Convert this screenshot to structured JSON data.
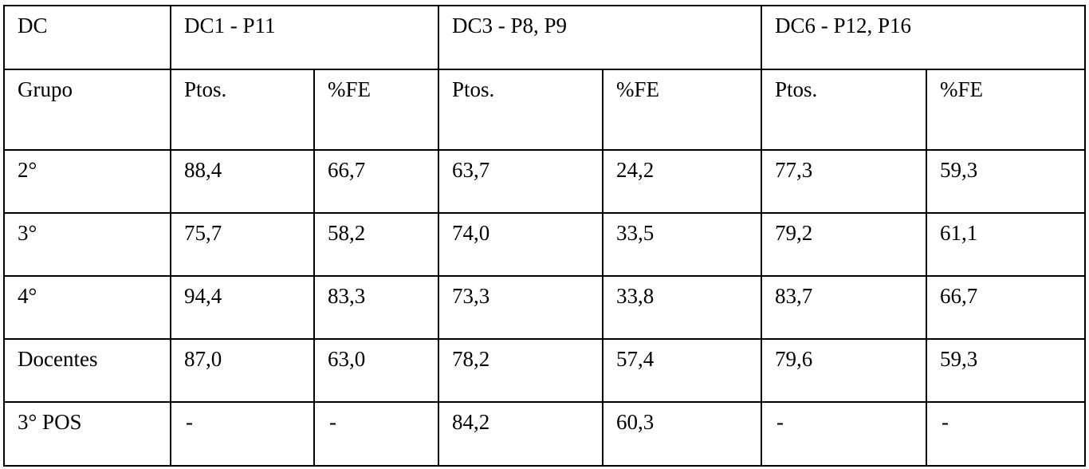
{
  "table": {
    "corner_label": "DC",
    "group_headers": [
      "DC1 - P11",
      "DC3 - P8, P9",
      "DC6 - P12, P16"
    ],
    "row_header_label": "Grupo",
    "sub_headers": [
      "Ptos.",
      "%FE",
      "Ptos.",
      "%FE",
      "Ptos.",
      "%FE"
    ],
    "rows": [
      {
        "group": "2°",
        "cells": [
          "88,4",
          "66,7",
          "63,7",
          "24,2",
          "77,3",
          "59,3"
        ]
      },
      {
        "group": "3°",
        "cells": [
          "75,7",
          "58,2",
          "74,0",
          "33,5",
          "79,2",
          "61,1"
        ]
      },
      {
        "group": "4°",
        "cells": [
          "94,4",
          "83,3",
          "73,3",
          "33,8",
          "83,7",
          "66,7"
        ]
      },
      {
        "group": "Docentes",
        "cells": [
          "87,0",
          "63,0",
          "78,2",
          "57,4",
          "79,6",
          "59,3"
        ]
      },
      {
        "group": "3° POS",
        "cells": [
          "-",
          "-",
          "84,2",
          "60,3",
          "-",
          "-"
        ]
      }
    ]
  }
}
